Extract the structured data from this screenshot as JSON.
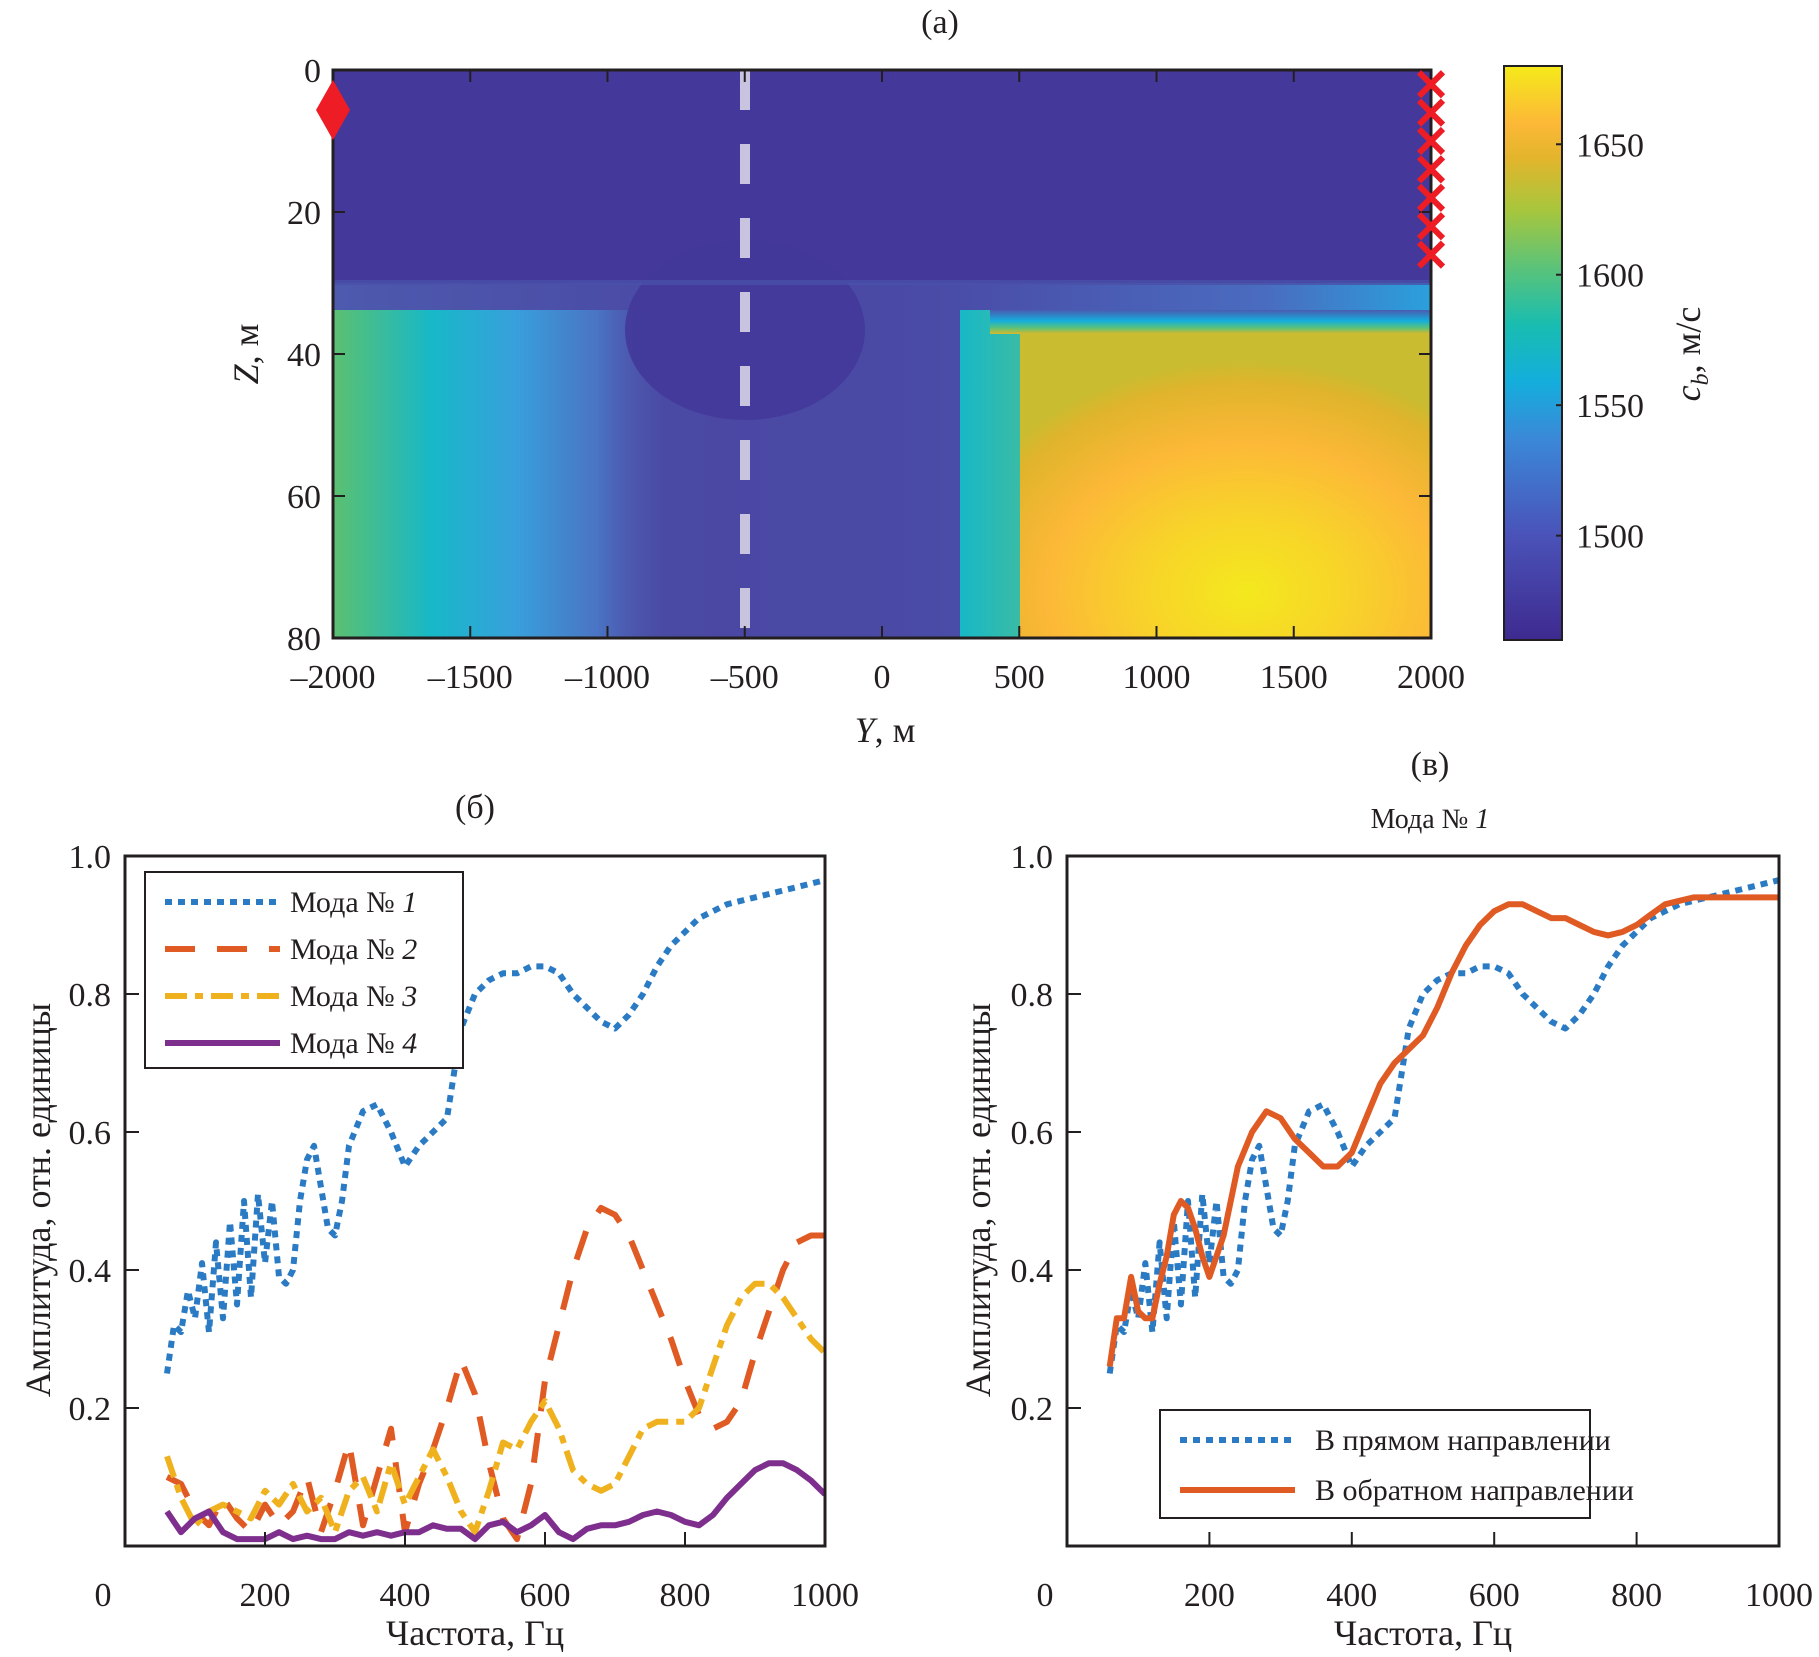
{
  "figure": {
    "panel_a_label": "(а)",
    "panel_b_label": "(б)",
    "panel_c_label": "(в)"
  },
  "chart_data": [
    {
      "id": "a",
      "type": "heatmap",
      "title": "(а)",
      "xlabel": "Y, м",
      "xlabel_italic": "Y",
      "xlabel_unit": ", м",
      "ylabel": "Z, м",
      "ylabel_italic": "Z",
      "ylabel_unit": ", м",
      "xlim": [
        -2000,
        2000
      ],
      "ylim": [
        0,
        80
      ],
      "y_inverted": true,
      "xticks": [
        -2000,
        -1500,
        -1000,
        -500,
        0,
        500,
        1000,
        1500,
        2000
      ],
      "xtick_labels": [
        "–2000",
        "–1500",
        "–1000",
        "–500",
        "0",
        "500",
        "1000",
        "1500",
        "2000"
      ],
      "yticks": [
        0,
        20,
        40,
        60,
        80
      ],
      "ytick_labels": [
        "0",
        "20",
        "40",
        "60",
        "80"
      ],
      "colorbar": {
        "label": "c_b, м/с",
        "label_main": "c",
        "label_sub": "b",
        "label_unit": ", м/с",
        "range": [
          1460,
          1680
        ],
        "ticks": [
          1500,
          1550,
          1600,
          1650
        ],
        "tick_labels": [
          "1500",
          "1550",
          "1600",
          "1650"
        ],
        "colormap": "parula"
      },
      "water_layer_depth": 30,
      "water_speed": 1470,
      "description_regions": [
        {
          "region": "water column",
          "y_range": [
            -2000,
            2000
          ],
          "z_range": [
            0,
            30
          ],
          "value": 1470
        },
        {
          "region": "left bottom slope",
          "y_range": [
            -2000,
            -1300
          ],
          "z_range": [
            35,
            80
          ],
          "value_range": [
            1560,
            1600
          ]
        },
        {
          "region": "central trough",
          "y_range": [
            -1000,
            0
          ],
          "z_range": [
            30,
            80
          ],
          "value_range": [
            1470,
            1520
          ]
        },
        {
          "region": "right sediment high",
          "y_range": [
            500,
            2000
          ],
          "z_range": [
            35,
            80
          ],
          "value_range": [
            1630,
            1680
          ]
        }
      ],
      "markers": {
        "source": {
          "shape": "diamond",
          "color": "#ee1c25",
          "y": -2000,
          "z": 5
        },
        "receivers": {
          "shape": "x",
          "color": "#ee1c25",
          "y": 2000,
          "z_values": [
            2,
            6,
            10,
            14,
            18,
            22,
            26
          ]
        },
        "dashed_line": {
          "color": "#c8c4e0",
          "y": -500
        }
      }
    },
    {
      "id": "b",
      "type": "line",
      "title": "(б)",
      "xlabel": "Частота, Гц",
      "ylabel": "Амплитуда, отн. единицы",
      "xlim": [
        0,
        1000
      ],
      "ylim": [
        0,
        1.0
      ],
      "xticks": [
        0,
        200,
        400,
        600,
        800,
        1000
      ],
      "xtick_labels": [
        "0",
        "200",
        "400",
        "600",
        "800",
        "1000"
      ],
      "yticks": [
        0.2,
        0.4,
        0.6,
        0.8,
        1.0
      ],
      "ytick_labels": [
        "0.2",
        "0.4",
        "0.6",
        "0.8",
        "1.0"
      ],
      "x0_label": "0",
      "legend_position": "top-left",
      "series": [
        {
          "name": "Мода № 1",
          "name_prefix": "Мода № ",
          "name_num": "1",
          "color": "#2a7bc4",
          "style": "dotted",
          "x": [
            60,
            70,
            80,
            90,
            100,
            110,
            120,
            130,
            140,
            150,
            160,
            170,
            180,
            190,
            200,
            210,
            220,
            230,
            240,
            250,
            260,
            270,
            280,
            290,
            300,
            310,
            320,
            340,
            360,
            380,
            400,
            420,
            440,
            460,
            480,
            500,
            520,
            540,
            560,
            580,
            600,
            620,
            640,
            660,
            680,
            700,
            720,
            740,
            760,
            780,
            800,
            820,
            840,
            860,
            880,
            900,
            920,
            940,
            960,
            980,
            1000
          ],
          "y": [
            0.25,
            0.32,
            0.31,
            0.37,
            0.33,
            0.41,
            0.31,
            0.44,
            0.33,
            0.47,
            0.35,
            0.5,
            0.36,
            0.51,
            0.41,
            0.5,
            0.39,
            0.38,
            0.4,
            0.5,
            0.56,
            0.58,
            0.52,
            0.46,
            0.45,
            0.5,
            0.58,
            0.63,
            0.64,
            0.6,
            0.55,
            0.58,
            0.6,
            0.62,
            0.75,
            0.8,
            0.82,
            0.83,
            0.83,
            0.84,
            0.84,
            0.83,
            0.8,
            0.78,
            0.76,
            0.75,
            0.77,
            0.8,
            0.84,
            0.87,
            0.89,
            0.91,
            0.92,
            0.93,
            0.935,
            0.94,
            0.945,
            0.95,
            0.955,
            0.96,
            0.965
          ]
        },
        {
          "name": "Мода № 2",
          "name_prefix": "Мода № ",
          "name_num": "2",
          "color": "#e05a24",
          "style": "dashed",
          "x": [
            60,
            80,
            100,
            120,
            140,
            160,
            180,
            200,
            220,
            240,
            260,
            280,
            300,
            320,
            340,
            360,
            380,
            400,
            420,
            440,
            460,
            480,
            500,
            520,
            540,
            560,
            580,
            600,
            620,
            640,
            660,
            680,
            700,
            720,
            740,
            760,
            780,
            800,
            820,
            840,
            860,
            880,
            900,
            920,
            940,
            960,
            980,
            1000
          ],
          "y": [
            0.1,
            0.09,
            0.05,
            0.03,
            0.07,
            0.04,
            0.02,
            0.06,
            0.03,
            0.05,
            0.1,
            0.02,
            0.08,
            0.15,
            0.03,
            0.1,
            0.17,
            0.02,
            0.09,
            0.14,
            0.2,
            0.27,
            0.22,
            0.12,
            0.04,
            0.01,
            0.09,
            0.24,
            0.32,
            0.4,
            0.46,
            0.49,
            0.48,
            0.45,
            0.4,
            0.35,
            0.3,
            0.24,
            0.19,
            0.17,
            0.18,
            0.21,
            0.28,
            0.34,
            0.4,
            0.44,
            0.45,
            0.45
          ]
        },
        {
          "name": "Мода № 3",
          "name_prefix": "Мода № ",
          "name_num": "3",
          "color": "#efb21e",
          "style": "dash-dot",
          "x": [
            60,
            80,
            100,
            120,
            140,
            160,
            180,
            200,
            220,
            240,
            260,
            280,
            300,
            320,
            340,
            360,
            380,
            400,
            420,
            440,
            460,
            480,
            500,
            520,
            540,
            560,
            580,
            600,
            620,
            640,
            660,
            680,
            700,
            720,
            740,
            760,
            780,
            800,
            820,
            840,
            860,
            880,
            900,
            920,
            940,
            960,
            980,
            1000
          ],
          "y": [
            0.13,
            0.07,
            0.03,
            0.05,
            0.06,
            0.05,
            0.04,
            0.08,
            0.06,
            0.09,
            0.05,
            0.07,
            0.02,
            0.08,
            0.1,
            0.05,
            0.12,
            0.06,
            0.1,
            0.14,
            0.1,
            0.05,
            0.02,
            0.08,
            0.15,
            0.14,
            0.18,
            0.21,
            0.17,
            0.11,
            0.09,
            0.08,
            0.09,
            0.13,
            0.17,
            0.18,
            0.18,
            0.18,
            0.2,
            0.26,
            0.32,
            0.36,
            0.38,
            0.38,
            0.36,
            0.33,
            0.3,
            0.28
          ]
        },
        {
          "name": "Мода № 4",
          "name_prefix": "Мода № ",
          "name_num": "4",
          "color": "#7e2f8e",
          "style": "solid",
          "x": [
            60,
            80,
            100,
            120,
            140,
            160,
            180,
            200,
            220,
            240,
            260,
            280,
            300,
            320,
            340,
            360,
            380,
            400,
            420,
            440,
            460,
            480,
            500,
            520,
            540,
            560,
            580,
            600,
            620,
            640,
            660,
            680,
            700,
            720,
            740,
            760,
            780,
            800,
            820,
            840,
            860,
            880,
            900,
            920,
            940,
            960,
            980,
            1000
          ],
          "y": [
            0.05,
            0.02,
            0.04,
            0.05,
            0.02,
            0.01,
            0.01,
            0.01,
            0.02,
            0.01,
            0.015,
            0.01,
            0.01,
            0.02,
            0.015,
            0.02,
            0.015,
            0.02,
            0.02,
            0.03,
            0.025,
            0.025,
            0.01,
            0.03,
            0.035,
            0.02,
            0.03,
            0.045,
            0.02,
            0.01,
            0.025,
            0.03,
            0.03,
            0.035,
            0.045,
            0.05,
            0.045,
            0.035,
            0.03,
            0.045,
            0.07,
            0.09,
            0.11,
            0.12,
            0.12,
            0.11,
            0.095,
            0.075
          ]
        }
      ]
    },
    {
      "id": "c",
      "type": "line",
      "title": "(в)",
      "subtitle": "Мода № 1",
      "subtitle_prefix": "Мода № ",
      "subtitle_num": "1",
      "xlabel": "Частота, Гц",
      "ylabel": "Амплитуда, отн. единицы",
      "xlim": [
        0,
        1000
      ],
      "ylim": [
        0,
        1.0
      ],
      "xticks": [
        0,
        200,
        400,
        600,
        800,
        1000
      ],
      "xtick_labels": [
        "0",
        "200",
        "400",
        "600",
        "800",
        "1000"
      ],
      "yticks": [
        0.2,
        0.4,
        0.6,
        0.8,
        1.0
      ],
      "ytick_labels": [
        "0.2",
        "0.4",
        "0.6",
        "0.8",
        "1.0"
      ],
      "x0_label": "0",
      "legend_position": "bottom-right",
      "series": [
        {
          "name": "В прямом направлении",
          "color": "#2a7bc4",
          "style": "dotted",
          "x": [
            60,
            70,
            80,
            90,
            100,
            110,
            120,
            130,
            140,
            150,
            160,
            170,
            180,
            190,
            200,
            210,
            220,
            230,
            240,
            250,
            260,
            270,
            280,
            290,
            300,
            310,
            320,
            340,
            360,
            380,
            400,
            420,
            440,
            460,
            480,
            500,
            520,
            540,
            560,
            580,
            600,
            620,
            640,
            660,
            680,
            700,
            720,
            740,
            760,
            780,
            800,
            820,
            840,
            860,
            880,
            900,
            920,
            940,
            960,
            980,
            1000
          ],
          "y": [
            0.25,
            0.32,
            0.31,
            0.37,
            0.33,
            0.41,
            0.31,
            0.44,
            0.33,
            0.47,
            0.35,
            0.5,
            0.36,
            0.51,
            0.41,
            0.5,
            0.39,
            0.38,
            0.4,
            0.5,
            0.56,
            0.58,
            0.52,
            0.46,
            0.45,
            0.5,
            0.58,
            0.63,
            0.64,
            0.6,
            0.55,
            0.58,
            0.6,
            0.62,
            0.75,
            0.8,
            0.82,
            0.83,
            0.83,
            0.84,
            0.84,
            0.83,
            0.8,
            0.78,
            0.76,
            0.75,
            0.77,
            0.8,
            0.84,
            0.87,
            0.89,
            0.91,
            0.92,
            0.93,
            0.935,
            0.94,
            0.945,
            0.95,
            0.955,
            0.96,
            0.965
          ]
        },
        {
          "name": "В обратном направлении",
          "color": "#e05a24",
          "style": "solid",
          "x": [
            60,
            70,
            80,
            90,
            100,
            110,
            120,
            130,
            140,
            150,
            160,
            170,
            180,
            190,
            200,
            220,
            240,
            260,
            280,
            300,
            320,
            340,
            360,
            380,
            400,
            420,
            440,
            460,
            480,
            500,
            520,
            540,
            560,
            580,
            600,
            620,
            640,
            660,
            680,
            700,
            720,
            740,
            760,
            780,
            800,
            820,
            840,
            860,
            880,
            900,
            920,
            940,
            960,
            980,
            1000
          ],
          "y": [
            0.26,
            0.33,
            0.33,
            0.39,
            0.34,
            0.33,
            0.33,
            0.38,
            0.42,
            0.48,
            0.5,
            0.49,
            0.46,
            0.42,
            0.39,
            0.45,
            0.55,
            0.6,
            0.63,
            0.62,
            0.59,
            0.57,
            0.55,
            0.55,
            0.57,
            0.62,
            0.67,
            0.7,
            0.72,
            0.74,
            0.78,
            0.83,
            0.87,
            0.9,
            0.92,
            0.93,
            0.93,
            0.92,
            0.91,
            0.91,
            0.9,
            0.89,
            0.885,
            0.89,
            0.9,
            0.915,
            0.93,
            0.935,
            0.94,
            0.94,
            0.94,
            0.94,
            0.94,
            0.94,
            0.94
          ]
        }
      ]
    }
  ]
}
